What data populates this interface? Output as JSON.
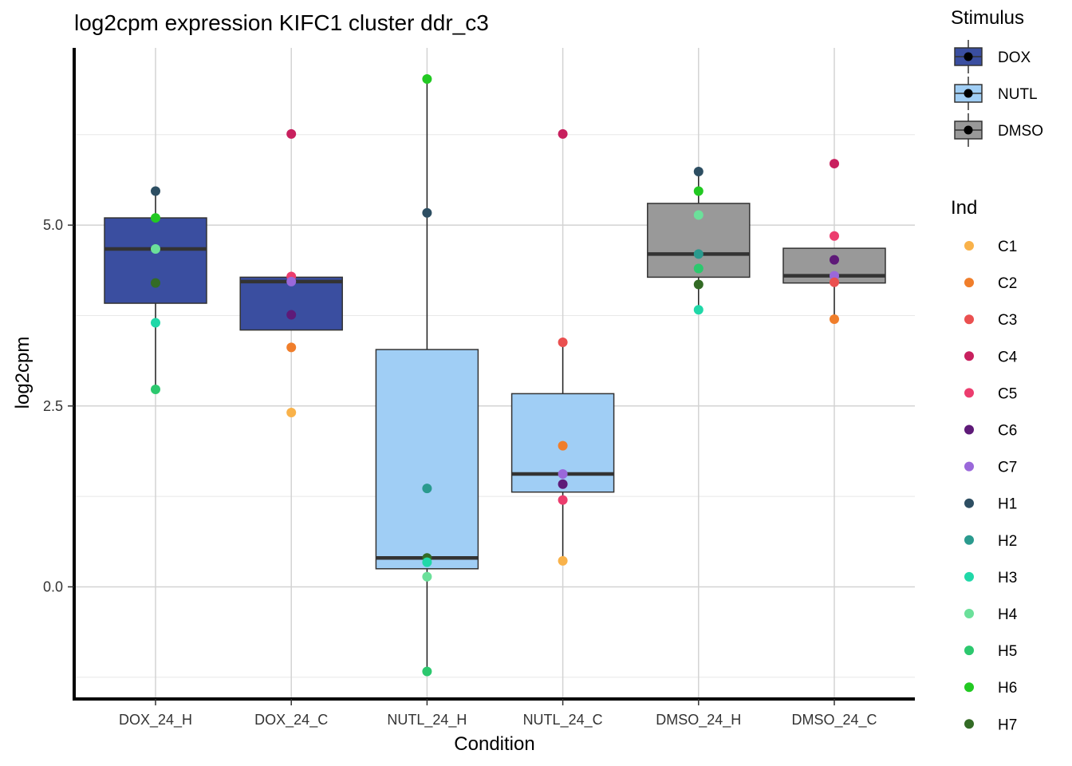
{
  "chart_data": {
    "type": "boxplot",
    "title": "log2cpm expression KIFC1 cluster ddr_c3",
    "xlabel": "Condition",
    "ylabel": "log2cpm",
    "ylim": [
      -1.55,
      7.45
    ],
    "yticks": [
      0.0,
      2.5,
      5.0
    ],
    "ytick_labels": [
      "0.0",
      "2.5",
      "5.0"
    ],
    "grid": true,
    "categories": [
      "DOX_24_H",
      "DOX_24_C",
      "NUTL_24_H",
      "NUTL_24_C",
      "DMSO_24_H",
      "DMSO_24_C"
    ],
    "stimulus_legend": {
      "title": "Stimulus",
      "items": [
        {
          "name": "DOX",
          "color": "#3A4EA0"
        },
        {
          "name": "NUTL",
          "color": "#A0CEF5"
        },
        {
          "name": "DMSO",
          "color": "#999999"
        }
      ]
    },
    "ind_legend": {
      "title": "Ind",
      "items": [
        {
          "name": "C1",
          "color": "#F9B24A"
        },
        {
          "name": "C2",
          "color": "#F07E2B"
        },
        {
          "name": "C3",
          "color": "#EA5050"
        },
        {
          "name": "C4",
          "color": "#C8205E"
        },
        {
          "name": "C5",
          "color": "#EC3D6E"
        },
        {
          "name": "C6",
          "color": "#5E1A78"
        },
        {
          "name": "C7",
          "color": "#9A68DA"
        },
        {
          "name": "H1",
          "color": "#2D4E62"
        },
        {
          "name": "H2",
          "color": "#2A9A8E"
        },
        {
          "name": "H3",
          "color": "#20D8A8"
        },
        {
          "name": "H4",
          "color": "#6BE09A"
        },
        {
          "name": "H5",
          "color": "#2CC86E"
        },
        {
          "name": "H6",
          "color": "#22C922"
        },
        {
          "name": "H7",
          "color": "#336B25"
        }
      ]
    },
    "boxes": [
      {
        "condition": "DOX_24_H",
        "stimulus": "DOX",
        "q1": 3.92,
        "median": 4.67,
        "q3": 5.1,
        "whisker_low": 2.73,
        "whisker_high": 5.47
      },
      {
        "condition": "DOX_24_C",
        "stimulus": "DOX",
        "q1": 3.55,
        "median": 4.22,
        "q3": 4.28,
        "whisker_low": 3.55,
        "whisker_high": 4.28
      },
      {
        "condition": "NUTL_24_H",
        "stimulus": "NUTL",
        "q1": 0.25,
        "median": 0.4,
        "q3": 3.28,
        "whisker_low": -1.17,
        "whisker_high": 7.02
      },
      {
        "condition": "NUTL_24_C",
        "stimulus": "NUTL",
        "q1": 1.31,
        "median": 1.56,
        "q3": 2.67,
        "whisker_low": 0.36,
        "whisker_high": 3.38
      },
      {
        "condition": "DMSO_24_H",
        "stimulus": "DMSO",
        "q1": 4.28,
        "median": 4.6,
        "q3": 5.3,
        "whisker_low": 3.83,
        "whisker_high": 5.74
      },
      {
        "condition": "DMSO_24_C",
        "stimulus": "DMSO",
        "q1": 4.2,
        "median": 4.3,
        "q3": 4.68,
        "whisker_low": 3.7,
        "whisker_high": 4.68
      }
    ],
    "points": [
      {
        "condition": "DOX_24_H",
        "ind": "H1",
        "value": 5.47
      },
      {
        "condition": "DOX_24_H",
        "ind": "H6",
        "value": 5.1
      },
      {
        "condition": "DOX_24_H",
        "ind": "H4",
        "value": 4.67
      },
      {
        "condition": "DOX_24_H",
        "ind": "H7",
        "value": 4.2
      },
      {
        "condition": "DOX_24_H",
        "ind": "H3",
        "value": 3.65
      },
      {
        "condition": "DOX_24_H",
        "ind": "H5",
        "value": 2.73
      },
      {
        "condition": "DOX_24_C",
        "ind": "C4",
        "value": 6.26
      },
      {
        "condition": "DOX_24_C",
        "ind": "C5",
        "value": 4.29
      },
      {
        "condition": "DOX_24_C",
        "ind": "C7",
        "value": 4.22
      },
      {
        "condition": "DOX_24_C",
        "ind": "C6",
        "value": 3.76
      },
      {
        "condition": "DOX_24_C",
        "ind": "C2",
        "value": 3.31
      },
      {
        "condition": "DOX_24_C",
        "ind": "C1",
        "value": 2.41
      },
      {
        "condition": "NUTL_24_H",
        "ind": "H6",
        "value": 7.02
      },
      {
        "condition": "NUTL_24_H",
        "ind": "H1",
        "value": 5.17
      },
      {
        "condition": "NUTL_24_H",
        "ind": "H2",
        "value": 1.36
      },
      {
        "condition": "NUTL_24_H",
        "ind": "H7",
        "value": 0.4
      },
      {
        "condition": "NUTL_24_H",
        "ind": "H3",
        "value": 0.34
      },
      {
        "condition": "NUTL_24_H",
        "ind": "H4",
        "value": 0.14
      },
      {
        "condition": "NUTL_24_H",
        "ind": "H5",
        "value": -1.17
      },
      {
        "condition": "NUTL_24_C",
        "ind": "C4",
        "value": 6.26
      },
      {
        "condition": "NUTL_24_C",
        "ind": "C3",
        "value": 3.38
      },
      {
        "condition": "NUTL_24_C",
        "ind": "C2",
        "value": 1.95
      },
      {
        "condition": "NUTL_24_C",
        "ind": "C7",
        "value": 1.56
      },
      {
        "condition": "NUTL_24_C",
        "ind": "C6",
        "value": 1.42
      },
      {
        "condition": "NUTL_24_C",
        "ind": "C5",
        "value": 1.2
      },
      {
        "condition": "NUTL_24_C",
        "ind": "C1",
        "value": 0.36
      },
      {
        "condition": "DMSO_24_H",
        "ind": "H1",
        "value": 5.74
      },
      {
        "condition": "DMSO_24_H",
        "ind": "H6",
        "value": 5.47
      },
      {
        "condition": "DMSO_24_H",
        "ind": "H4",
        "value": 5.14
      },
      {
        "condition": "DMSO_24_H",
        "ind": "H2",
        "value": 4.6
      },
      {
        "condition": "DMSO_24_H",
        "ind": "H5",
        "value": 4.4
      },
      {
        "condition": "DMSO_24_H",
        "ind": "H7",
        "value": 4.18
      },
      {
        "condition": "DMSO_24_H",
        "ind": "H3",
        "value": 3.83
      },
      {
        "condition": "DMSO_24_C",
        "ind": "C4",
        "value": 5.85
      },
      {
        "condition": "DMSO_24_C",
        "ind": "C5",
        "value": 4.85
      },
      {
        "condition": "DMSO_24_C",
        "ind": "C6",
        "value": 4.52
      },
      {
        "condition": "DMSO_24_C",
        "ind": "C7",
        "value": 4.3
      },
      {
        "condition": "DMSO_24_C",
        "ind": "C3",
        "value": 4.21
      },
      {
        "condition": "DMSO_24_C",
        "ind": "C2",
        "value": 3.7
      }
    ]
  }
}
